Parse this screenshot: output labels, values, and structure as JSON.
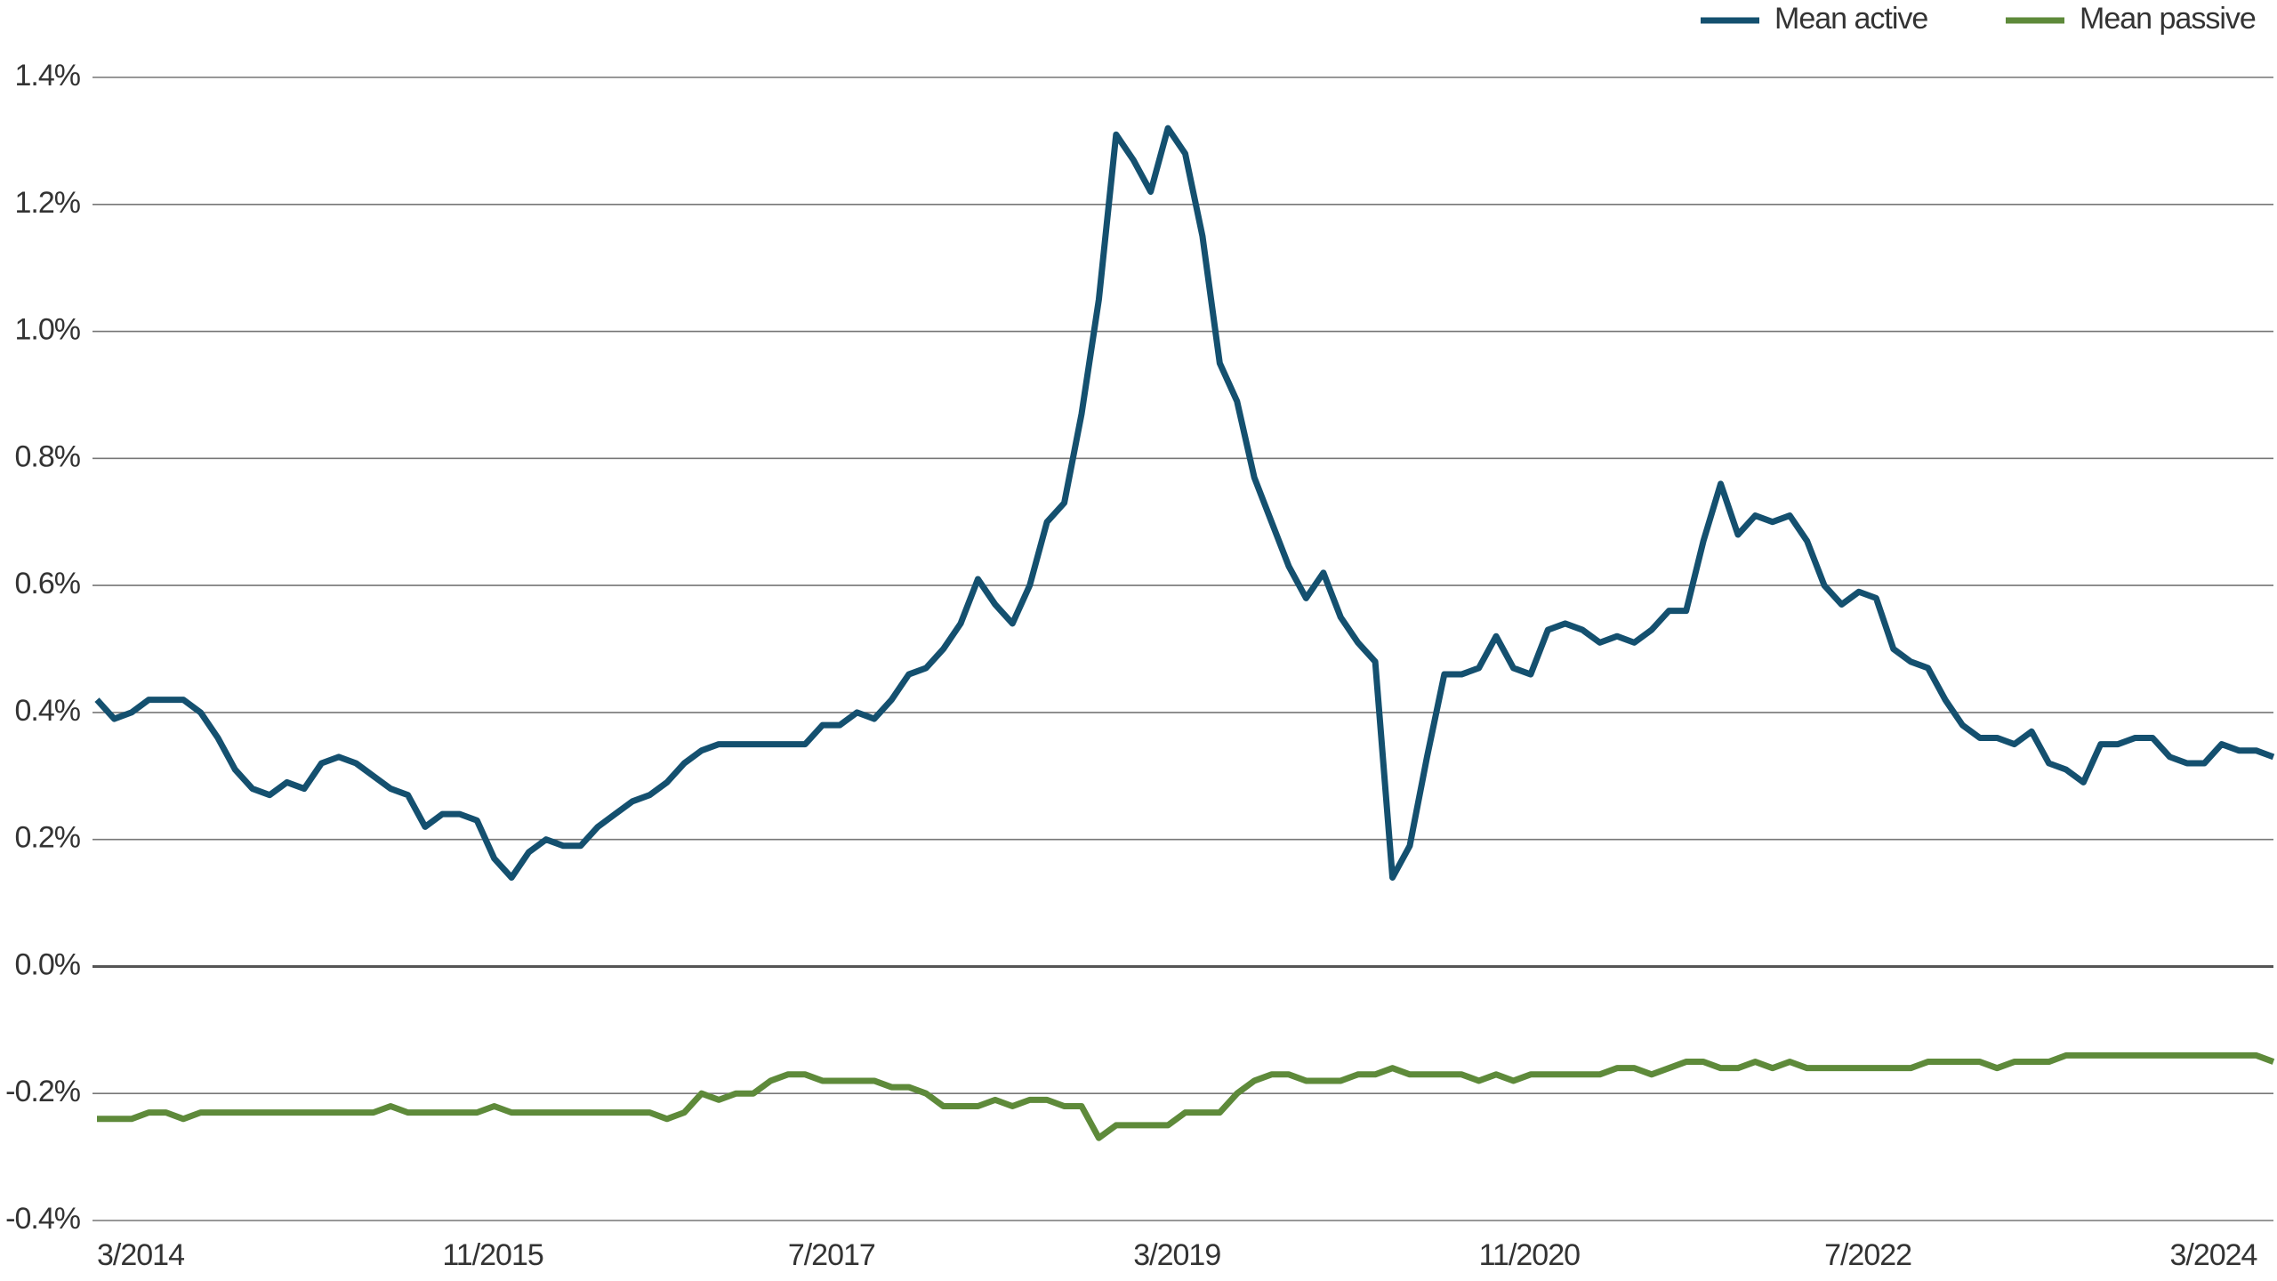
{
  "chart_data": {
    "type": "line",
    "categories": [
      "3/2014",
      null,
      null,
      null,
      null,
      null,
      null,
      null,
      null,
      null,
      null,
      null,
      null,
      null,
      null,
      null,
      null,
      null,
      null,
      null,
      "11/2015",
      null,
      null,
      null,
      null,
      null,
      null,
      null,
      null,
      null,
      null,
      null,
      null,
      null,
      null,
      null,
      null,
      null,
      null,
      null,
      "7/2017",
      null,
      null,
      null,
      null,
      null,
      null,
      null,
      null,
      null,
      null,
      null,
      null,
      null,
      null,
      null,
      null,
      null,
      null,
      null,
      "3/2019",
      null,
      null,
      null,
      null,
      null,
      null,
      null,
      null,
      null,
      null,
      null,
      null,
      null,
      null,
      null,
      null,
      null,
      null,
      null,
      "11/2020",
      null,
      null,
      null,
      null,
      null,
      null,
      null,
      null,
      null,
      null,
      null,
      null,
      null,
      null,
      null,
      null,
      null,
      null,
      null,
      "7/2022",
      null,
      null,
      null,
      null,
      null,
      null,
      null,
      null,
      null,
      null,
      null,
      null,
      null,
      null,
      null,
      null,
      null,
      null,
      null,
      "3/2024",
      null,
      null,
      null,
      null,
      null,
      null
    ],
    "series": [
      {
        "name": "Mean active",
        "color": "#14506f",
        "values": [
          0.42,
          0.39,
          0.4,
          0.42,
          0.42,
          0.42,
          0.4,
          0.36,
          0.31,
          0.28,
          0.27,
          0.29,
          0.28,
          0.32,
          0.33,
          0.32,
          0.3,
          0.28,
          0.27,
          0.22,
          0.24,
          0.24,
          0.23,
          0.17,
          0.14,
          0.18,
          0.2,
          0.19,
          0.19,
          0.22,
          0.24,
          0.26,
          0.27,
          0.29,
          0.32,
          0.34,
          0.35,
          0.35,
          0.35,
          0.35,
          0.35,
          0.35,
          0.38,
          0.38,
          0.4,
          0.39,
          0.42,
          0.46,
          0.47,
          0.5,
          0.54,
          0.61,
          0.57,
          0.54,
          0.6,
          0.7,
          0.73,
          0.87,
          1.05,
          1.31,
          1.27,
          1.22,
          1.32,
          1.28,
          1.15,
          0.95,
          0.89,
          0.77,
          0.7,
          0.63,
          0.58,
          0.62,
          0.55,
          0.51,
          0.48,
          0.14,
          0.19,
          0.33,
          0.46,
          0.46,
          0.47,
          0.52,
          0.47,
          0.46,
          0.53,
          0.54,
          0.53,
          0.51,
          0.52,
          0.51,
          0.53,
          0.56,
          0.56,
          0.67,
          0.76,
          0.68,
          0.71,
          0.7,
          0.71,
          0.67,
          0.6,
          0.57,
          0.59,
          0.58,
          0.5,
          0.48,
          0.47,
          0.42,
          0.38,
          0.36,
          0.36,
          0.35,
          0.37,
          0.32,
          0.31,
          0.29,
          0.35,
          0.35,
          0.36,
          0.36,
          0.33,
          0.32,
          0.32,
          0.35,
          0.34,
          0.34,
          0.33
        ]
      },
      {
        "name": "Mean passive",
        "color": "#5e8a3a",
        "values": [
          -0.24,
          -0.24,
          -0.24,
          -0.23,
          -0.23,
          -0.24,
          -0.23,
          -0.23,
          -0.23,
          -0.23,
          -0.23,
          -0.23,
          -0.23,
          -0.23,
          -0.23,
          -0.23,
          -0.23,
          -0.22,
          -0.23,
          -0.23,
          -0.23,
          -0.23,
          -0.23,
          -0.22,
          -0.23,
          -0.23,
          -0.23,
          -0.23,
          -0.23,
          -0.23,
          -0.23,
          -0.23,
          -0.23,
          -0.24,
          -0.23,
          -0.2,
          -0.21,
          -0.2,
          -0.2,
          -0.18,
          -0.17,
          -0.17,
          -0.18,
          -0.18,
          -0.18,
          -0.18,
          -0.19,
          -0.19,
          -0.2,
          -0.22,
          -0.22,
          -0.22,
          -0.21,
          -0.22,
          -0.21,
          -0.21,
          -0.22,
          -0.22,
          -0.27,
          -0.25,
          -0.25,
          -0.25,
          -0.25,
          -0.23,
          -0.23,
          -0.23,
          -0.2,
          -0.18,
          -0.17,
          -0.17,
          -0.18,
          -0.18,
          -0.18,
          -0.17,
          -0.17,
          -0.16,
          -0.17,
          -0.17,
          -0.17,
          -0.17,
          -0.18,
          -0.17,
          -0.18,
          -0.17,
          -0.17,
          -0.17,
          -0.17,
          -0.17,
          -0.16,
          -0.16,
          -0.17,
          -0.16,
          -0.15,
          -0.15,
          -0.16,
          -0.16,
          -0.15,
          -0.16,
          -0.15,
          -0.16,
          -0.16,
          -0.16,
          -0.16,
          -0.16,
          -0.16,
          -0.16,
          -0.15,
          -0.15,
          -0.15,
          -0.15,
          -0.16,
          -0.15,
          -0.15,
          -0.15,
          -0.14,
          -0.14,
          -0.14,
          -0.14,
          -0.14,
          -0.14,
          -0.14,
          -0.14,
          -0.14,
          -0.14,
          -0.14,
          -0.14,
          -0.15
        ]
      }
    ],
    "ylim": [
      -0.4,
      1.4
    ],
    "yticks": [
      {
        "value": -0.4,
        "label": "-0.4%"
      },
      {
        "value": -0.2,
        "label": "-0.2%"
      },
      {
        "value": 0,
        "label": "0.0%"
      },
      {
        "value": 0.2,
        "label": "0.2%"
      },
      {
        "value": 0.4,
        "label": "0.4%"
      },
      {
        "value": 0.6,
        "label": "0.6%"
      },
      {
        "value": 0.8,
        "label": "0.8%"
      },
      {
        "value": 1.0,
        "label": "1.0%"
      },
      {
        "value": 1.2,
        "label": "1.2%"
      },
      {
        "value": 1.4,
        "label": "1.4%"
      }
    ],
    "grid": true,
    "legend": "top-right"
  }
}
